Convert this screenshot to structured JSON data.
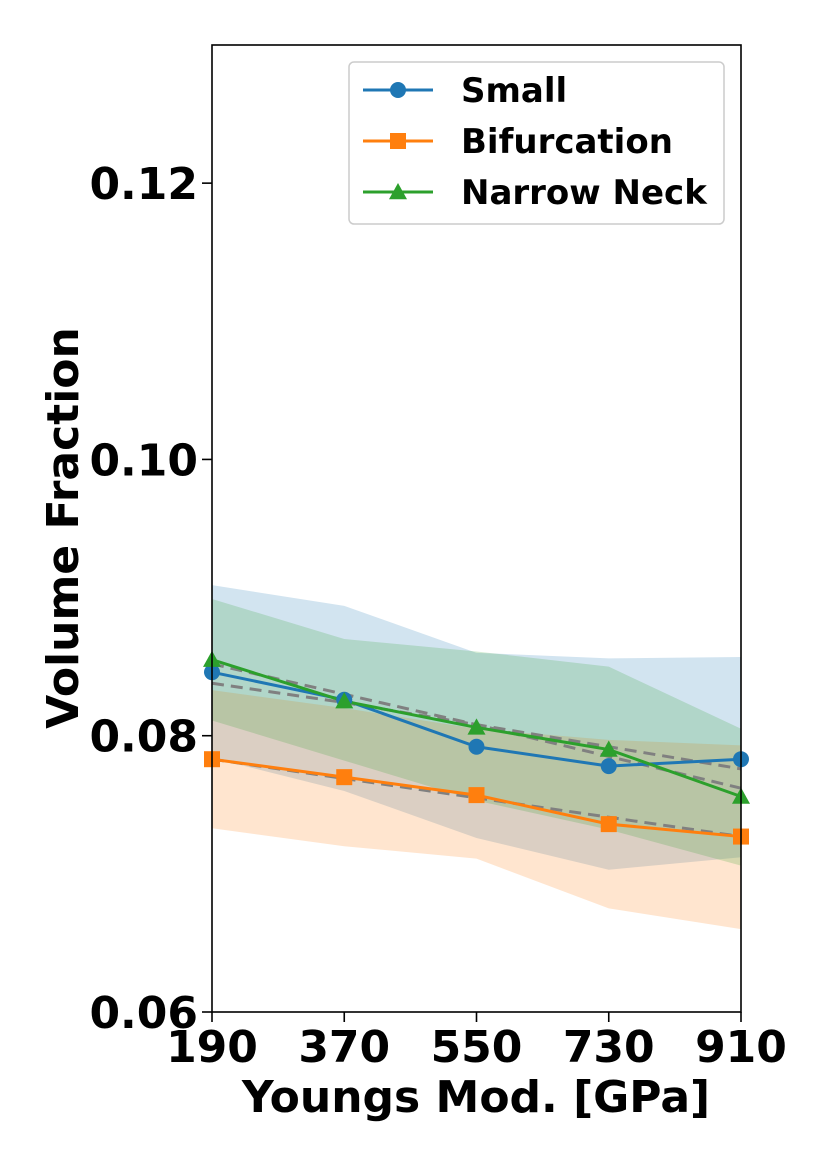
{
  "chart_data": {
    "type": "line",
    "title": "",
    "xlabel": "Youngs Mod. [GPa]",
    "ylabel": "Volume Fraction",
    "x": [
      190,
      370,
      550,
      730,
      910
    ],
    "x_tick_labels": [
      "190",
      "370",
      "550",
      "730",
      "910"
    ],
    "xlim": [
      190,
      910
    ],
    "ylim": [
      0.06,
      0.13
    ],
    "y_ticks": [
      0.06,
      0.08,
      0.1,
      0.12
    ],
    "y_tick_labels": [
      "0.06",
      "0.08",
      "0.10",
      "0.12"
    ],
    "grid": false,
    "legend_position": "top-right",
    "series": [
      {
        "name": "Small",
        "marker": "circle",
        "color": "#1f77b4",
        "values": [
          0.0846,
          0.0826,
          0.0792,
          0.0778,
          0.0783
        ],
        "band_upper": [
          0.0909,
          0.0894,
          0.086,
          0.0856,
          0.0857
        ],
        "band_lower": [
          0.0784,
          0.076,
          0.0726,
          0.0703,
          0.0712
        ],
        "trend": [
          0.0838,
          0.0824,
          0.0808,
          0.0792,
          0.0776
        ]
      },
      {
        "name": "Bifurcation",
        "marker": "square",
        "color": "#ff7f0e",
        "values": [
          0.0783,
          0.077,
          0.0757,
          0.0736,
          0.0727
        ],
        "band_upper": [
          0.0833,
          0.082,
          0.0805,
          0.0797,
          0.0793
        ],
        "band_lower": [
          0.0733,
          0.072,
          0.0711,
          0.0675,
          0.066
        ],
        "trend": [
          0.0783,
          0.0769,
          0.0755,
          0.0741,
          0.0727
        ]
      },
      {
        "name": "Narrow Neck",
        "marker": "triangle",
        "color": "#2ca02c",
        "values": [
          0.0855,
          0.0825,
          0.0806,
          0.079,
          0.0756
        ],
        "band_upper": [
          0.0899,
          0.087,
          0.0861,
          0.085,
          0.0805
        ],
        "band_lower": [
          0.0811,
          0.0782,
          0.0753,
          0.0732,
          0.0706
        ],
        "trend": [
          0.0852,
          0.083,
          0.0808,
          0.0785,
          0.0762
        ]
      }
    ]
  }
}
